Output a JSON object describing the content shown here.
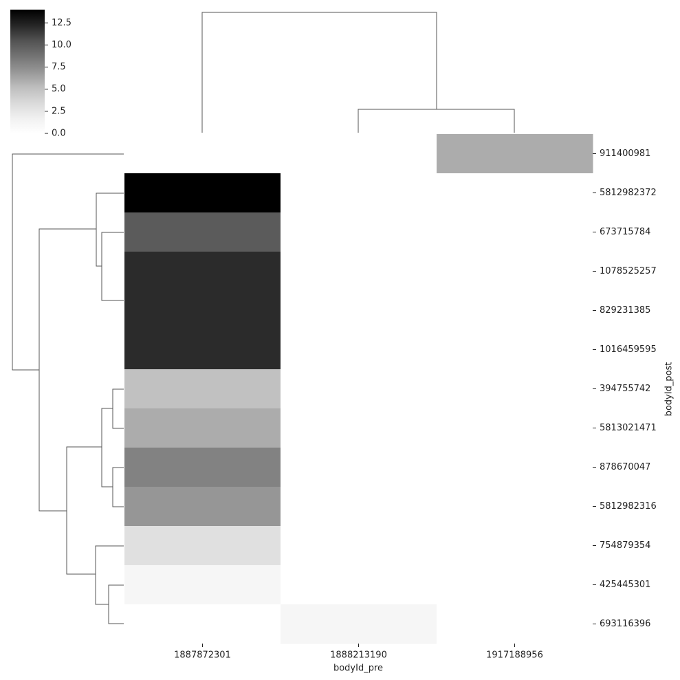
{
  "chart_data": {
    "type": "heatmap",
    "rows": [
      "911400981",
      "5812982372",
      "673715784",
      "1078525257",
      "829231385",
      "1016459595",
      "394755742",
      "5813021471",
      "878670047",
      "5812982316",
      "754879354",
      "425445301",
      "693116396"
    ],
    "columns": [
      "1887872301",
      "1888213190",
      "1917188956"
    ],
    "values": [
      [
        0,
        0,
        6
      ],
      [
        14,
        0,
        0
      ],
      [
        10,
        0,
        0
      ],
      [
        12,
        0,
        0
      ],
      [
        12,
        0,
        0
      ],
      [
        12,
        0,
        0
      ],
      [
        5,
        0,
        0
      ],
      [
        6,
        0,
        0
      ],
      [
        8,
        0,
        0
      ],
      [
        7,
        0,
        0
      ],
      [
        3,
        0,
        0
      ],
      [
        1,
        0,
        0
      ],
      [
        0,
        1,
        0
      ]
    ],
    "x_label": "bodyId_pre",
    "y_label": "bodyId_post",
    "clim": [
      0,
      14
    ],
    "cticks": [
      {
        "value": 0,
        "label": "0.0"
      },
      {
        "value": 2.5,
        "label": "2.5"
      },
      {
        "value": 5,
        "label": "5.0"
      },
      {
        "value": 7.5,
        "label": "7.5"
      },
      {
        "value": 10,
        "label": "10.0"
      },
      {
        "value": 12.5,
        "label": "12.5"
      }
    ],
    "colormap": [
      "#ffffff",
      "#f0f0f0",
      "#d9d9d9",
      "#bdbdbd",
      "#969696",
      "#737373",
      "#525252",
      "#252525",
      "#000000"
    ]
  }
}
